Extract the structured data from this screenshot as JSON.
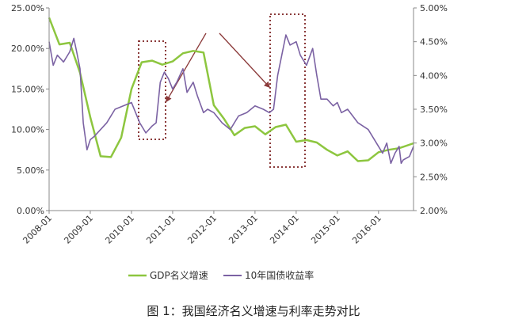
{
  "caption": "图 1：我国经济名义增速与利率走势对比",
  "colors": {
    "gdp": "#8DC63F",
    "yield": "#7B62A3",
    "annotation": "#8B3A3A",
    "axis": "#888888"
  },
  "chart_data": {
    "type": "line",
    "title": "",
    "xlabel": "",
    "ylabel_left": "",
    "ylabel_right": "",
    "x_ticks": [
      "2008-01",
      "2009-01",
      "2010-01",
      "2011-01",
      "2012-01",
      "2013-01",
      "2014-01",
      "2015-01",
      "2016-01"
    ],
    "x_range": [
      2008.0,
      2016.85
    ],
    "y_left": {
      "min": 0,
      "max": 25,
      "step": 5,
      "tick_labels": [
        "0.00%",
        "5.00%",
        "10.00%",
        "15.00%",
        "20.00%",
        "25.00%"
      ]
    },
    "y_right": {
      "min": 2.0,
      "max": 5.0,
      "step": 0.5,
      "tick_labels": [
        "2.00%",
        "2.50%",
        "3.00%",
        "3.50%",
        "4.00%",
        "4.50%",
        "5.00%"
      ]
    },
    "legend": {
      "placement": "bottom",
      "entries": [
        "GDP名义增速",
        "10年国债收益率"
      ]
    },
    "series": [
      {
        "name": "GDP名义增速",
        "axis": "left",
        "x": [
          2008.0,
          2008.25,
          2008.5,
          2008.75,
          2009.0,
          2009.25,
          2009.5,
          2009.75,
          2010.0,
          2010.25,
          2010.5,
          2010.75,
          2011.0,
          2011.25,
          2011.5,
          2011.75,
          2012.0,
          2012.25,
          2012.5,
          2012.75,
          2013.0,
          2013.25,
          2013.5,
          2013.75,
          2014.0,
          2014.25,
          2014.5,
          2014.75,
          2015.0,
          2015.25,
          2015.5,
          2015.75,
          2016.0,
          2016.25,
          2016.5,
          2016.85
        ],
        "values": [
          23.8,
          20.5,
          20.7,
          17.0,
          11.5,
          6.7,
          6.6,
          9.0,
          15.0,
          18.3,
          18.5,
          18.0,
          18.4,
          19.4,
          19.7,
          19.5,
          13.0,
          11.3,
          9.3,
          10.2,
          10.4,
          9.4,
          10.3,
          10.6,
          8.5,
          8.7,
          8.4,
          7.5,
          6.8,
          7.3,
          6.1,
          6.2,
          7.2,
          7.5,
          7.7,
          8.3
        ]
      },
      {
        "name": "10年国债收益率",
        "axis": "right",
        "x": [
          2008.0,
          2008.1,
          2008.2,
          2008.35,
          2008.5,
          2008.6,
          2008.67,
          2008.75,
          2008.83,
          2008.92,
          2009.0,
          2009.1,
          2009.25,
          2009.4,
          2009.6,
          2009.8,
          2010.0,
          2010.1,
          2010.2,
          2010.35,
          2010.5,
          2010.6,
          2010.7,
          2010.8,
          2010.9,
          2011.0,
          2011.1,
          2011.25,
          2011.35,
          2011.5,
          2011.6,
          2011.75,
          2011.85,
          2012.0,
          2012.2,
          2012.4,
          2012.6,
          2012.8,
          2013.0,
          2013.2,
          2013.35,
          2013.45,
          2013.55,
          2013.65,
          2013.75,
          2013.85,
          2014.0,
          2014.1,
          2014.25,
          2014.4,
          2014.5,
          2014.6,
          2014.75,
          2014.9,
          2015.0,
          2015.1,
          2015.25,
          2015.5,
          2015.75,
          2016.0,
          2016.1,
          2016.2,
          2016.3,
          2016.4,
          2016.5,
          2016.55,
          2016.6,
          2016.75,
          2016.85
        ],
        "values": [
          4.5,
          4.15,
          4.3,
          4.2,
          4.35,
          4.55,
          4.35,
          4.1,
          3.3,
          2.9,
          3.05,
          3.1,
          3.2,
          3.3,
          3.5,
          3.55,
          3.6,
          3.45,
          3.3,
          3.15,
          3.25,
          3.3,
          3.9,
          4.05,
          3.95,
          3.8,
          3.9,
          4.1,
          3.75,
          3.9,
          3.7,
          3.45,
          3.5,
          3.45,
          3.3,
          3.2,
          3.4,
          3.45,
          3.55,
          3.5,
          3.45,
          3.5,
          4.0,
          4.3,
          4.6,
          4.45,
          4.5,
          4.3,
          4.15,
          4.4,
          4.0,
          3.65,
          3.65,
          3.55,
          3.6,
          3.45,
          3.5,
          3.3,
          3.2,
          2.95,
          2.85,
          3.0,
          2.7,
          2.85,
          2.95,
          2.7,
          2.75,
          2.8,
          2.95
        ]
      }
    ]
  }
}
